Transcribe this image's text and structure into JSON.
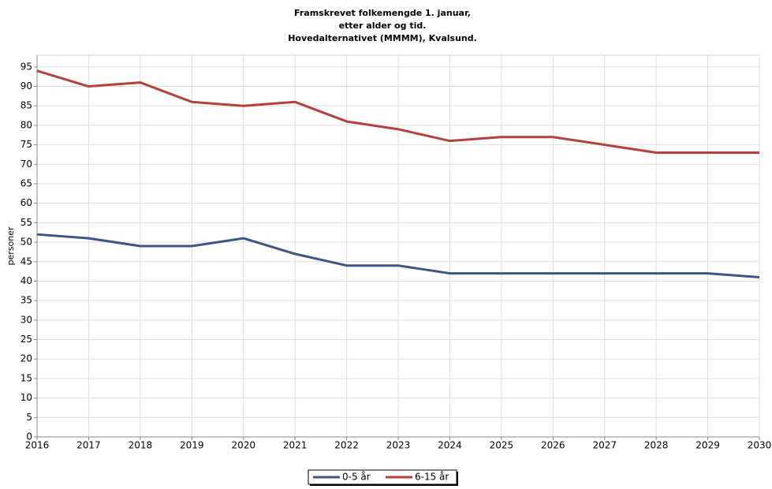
{
  "chart_data": {
    "type": "line",
    "title": [
      "Framskrevet folkemengde 1. januar,",
      "etter alder og tid.",
      "Hovedalternativet (MMMM), Kvalsund."
    ],
    "ylabel": "personer",
    "x": [
      2016,
      2017,
      2018,
      2019,
      2020,
      2021,
      2022,
      2023,
      2024,
      2025,
      2026,
      2027,
      2028,
      2029,
      2030
    ],
    "xlim": [
      2016,
      2030
    ],
    "xticks": [
      2016,
      2017,
      2018,
      2019,
      2020,
      2021,
      2022,
      2023,
      2024,
      2025,
      2026,
      2027,
      2028,
      2029,
      2030
    ],
    "ylim": [
      0,
      98
    ],
    "yticks": [
      0,
      5,
      10,
      15,
      20,
      25,
      30,
      35,
      40,
      45,
      50,
      55,
      60,
      65,
      70,
      75,
      80,
      85,
      90,
      95
    ],
    "grid": true,
    "legend": "bottom",
    "series": [
      {
        "name": "0-5 år",
        "color": "#3b5585",
        "values": [
          52,
          51,
          49,
          49,
          51,
          47,
          44,
          44,
          42,
          42,
          42,
          42,
          42,
          42,
          41
        ]
      },
      {
        "name": "6-15 år",
        "color": "#b5403e",
        "values": [
          94,
          90,
          91,
          86,
          85,
          86,
          81,
          79,
          76,
          77,
          77,
          75,
          73,
          73,
          73
        ]
      }
    ]
  }
}
